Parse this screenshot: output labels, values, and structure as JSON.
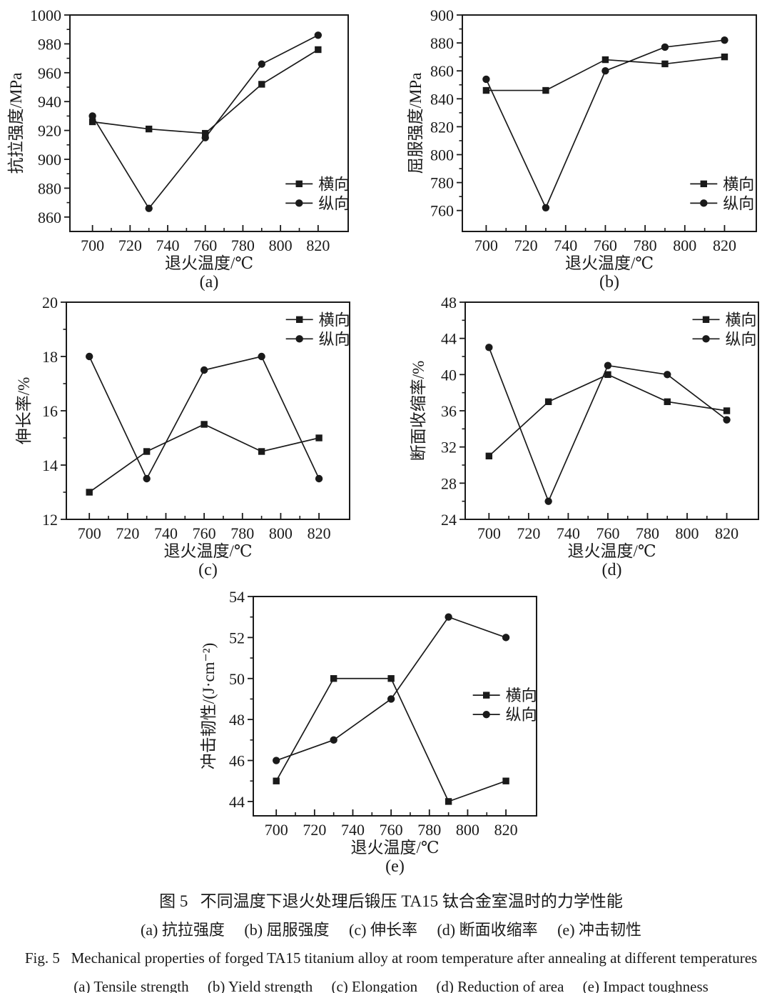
{
  "figure": {
    "captions": {
      "cn_title": "图 5   不同温度下退火处理后锻压 TA15 钛合金室温时的力学性能",
      "cn_items": "(a) 抗拉强度     (b) 屈服强度     (c) 伸长率     (d) 断面收缩率     (e) 冲击韧性",
      "en_title": "Fig. 5   Mechanical properties of forged TA15 titanium alloy at room temperature after annealing at different temperatures",
      "en_items": "(a) Tensile strength     (b) Yield strength     (c) Elongation     (d) Reduction of area     (e) Impact toughness"
    }
  },
  "chart_data": [
    {
      "id": "a",
      "type": "line",
      "panel_label": "(a)",
      "xlabel": "退火温度/℃",
      "ylabel": "抗拉强度/MPa",
      "x": [
        700,
        730,
        760,
        790,
        820
      ],
      "xticks": [
        700,
        720,
        740,
        760,
        780,
        800,
        820
      ],
      "xlim": [
        688,
        836
      ],
      "yticks": [
        860,
        880,
        900,
        920,
        940,
        960,
        980,
        1000
      ],
      "ylim": [
        850,
        1000
      ],
      "series": [
        {
          "name": "横向",
          "marker": "square",
          "values": [
            926,
            921,
            918,
            952,
            976
          ]
        },
        {
          "name": "纵向",
          "marker": "circle",
          "values": [
            930,
            866,
            915,
            966,
            986
          ]
        }
      ],
      "legend": {
        "position": "bottom-right",
        "fx": 0.775,
        "fy": 0.78
      },
      "grid": false,
      "color": "#1a1a1a"
    },
    {
      "id": "b",
      "type": "line",
      "panel_label": "(b)",
      "xlabel": "退火温度/℃",
      "ylabel": "屈服强度/MPa",
      "x": [
        700,
        730,
        760,
        790,
        820
      ],
      "xticks": [
        700,
        720,
        740,
        760,
        780,
        800,
        820
      ],
      "xlim": [
        688,
        836
      ],
      "yticks": [
        760,
        780,
        800,
        820,
        840,
        860,
        880,
        900
      ],
      "ylim": [
        745,
        900
      ],
      "series": [
        {
          "name": "横向",
          "marker": "square",
          "values": [
            846,
            846,
            868,
            865,
            870
          ]
        },
        {
          "name": "纵向",
          "marker": "circle",
          "values": [
            854,
            762,
            860,
            877,
            882
          ]
        }
      ],
      "legend": {
        "position": "bottom-right",
        "fx": 0.775,
        "fy": 0.78
      },
      "grid": false,
      "color": "#1a1a1a"
    },
    {
      "id": "c",
      "type": "line",
      "panel_label": "(c)",
      "xlabel": "退火温度/℃",
      "ylabel": "伸长率/%",
      "x": [
        700,
        730,
        760,
        790,
        820
      ],
      "xticks": [
        700,
        720,
        740,
        760,
        780,
        800,
        820
      ],
      "xlim": [
        688,
        836
      ],
      "yticks": [
        12,
        14,
        16,
        18,
        20
      ],
      "ylim": [
        12,
        20
      ],
      "series": [
        {
          "name": "横向",
          "marker": "square",
          "values": [
            13,
            14.5,
            15.5,
            14.5,
            15
          ]
        },
        {
          "name": "纵向",
          "marker": "circle",
          "values": [
            18,
            13.5,
            17.5,
            18,
            13.5
          ]
        }
      ],
      "legend": {
        "position": "top-right",
        "fx": 0.775,
        "fy": 0.08
      },
      "grid": false,
      "color": "#1a1a1a"
    },
    {
      "id": "d",
      "type": "line",
      "panel_label": "(d)",
      "xlabel": "退火温度/℃",
      "ylabel": "断面收缩率/%",
      "x": [
        700,
        730,
        760,
        790,
        820
      ],
      "xticks": [
        700,
        720,
        740,
        760,
        780,
        800,
        820
      ],
      "xlim": [
        688,
        836
      ],
      "yticks": [
        24,
        28,
        32,
        36,
        40,
        44,
        48
      ],
      "ylim": [
        24,
        48
      ],
      "series": [
        {
          "name": "横向",
          "marker": "square",
          "values": [
            31,
            37,
            40,
            37,
            36
          ]
        },
        {
          "name": "纵向",
          "marker": "circle",
          "values": [
            43,
            26,
            41,
            40,
            35
          ]
        }
      ],
      "legend": {
        "position": "top-right",
        "fx": 0.775,
        "fy": 0.08
      },
      "grid": false,
      "color": "#1a1a1a"
    },
    {
      "id": "e",
      "type": "line",
      "panel_label": "(e)",
      "xlabel": "退火温度/℃",
      "ylabel": "冲击韧性/(J·cm⁻²)",
      "x": [
        700,
        730,
        760,
        790,
        820
      ],
      "xticks": [
        700,
        720,
        740,
        760,
        780,
        800,
        820
      ],
      "xlim": [
        688,
        836
      ],
      "yticks": [
        44,
        46,
        48,
        50,
        52,
        54
      ],
      "ylim": [
        43.3,
        54
      ],
      "series": [
        {
          "name": "横向",
          "marker": "square",
          "values": [
            45,
            50,
            50,
            44,
            45
          ]
        },
        {
          "name": "纵向",
          "marker": "circle",
          "values": [
            46,
            47,
            49,
            53,
            52
          ]
        }
      ],
      "legend": {
        "position": "middle-right",
        "fx": 0.775,
        "fy": 0.45
      },
      "grid": false,
      "color": "#1a1a1a"
    }
  ]
}
